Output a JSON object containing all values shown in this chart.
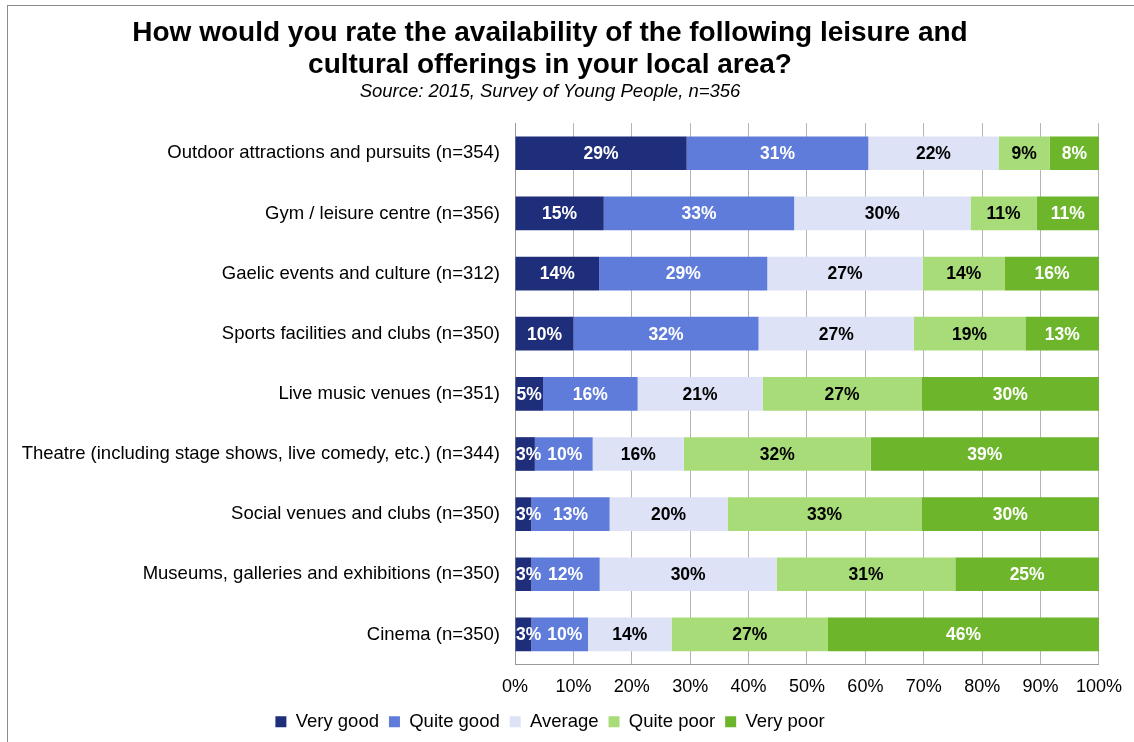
{
  "chart_data": {
    "type": "bar",
    "orientation": "horizontal",
    "stacked": true,
    "title": "How would you rate the availability of the following leisure and\ncultural offerings in your local area?",
    "subtitle": "Source: 2015, Survey of Young People, n=356",
    "categories": [
      "Outdoor attractions and pursuits (n=354)",
      "Gym / leisure centre (n=356)",
      "Gaelic events and culture (n=312)",
      "Sports facilities and clubs (n=350)",
      "Live music venues (n=351)",
      "Theatre (including stage shows, live comedy, etc.) (n=344)",
      "Social venues and clubs (n=350)",
      "Museums, galleries and exhibitions (n=350)",
      "Cinema (n=350)"
    ],
    "series": [
      {
        "name": "Very good",
        "color": "#1f2e7a",
        "values": [
          29.4,
          15.2,
          14.4,
          10.0,
          4.8,
          3.4,
          2.8,
          2.8,
          2.8
        ],
        "value_labels": [
          "29%",
          "15%",
          "14%",
          "10%",
          "5%",
          "3%",
          "3%",
          "3%",
          "3%"
        ]
      },
      {
        "name": "Quite good",
        "color": "#607cda",
        "values": [
          31.1,
          32.6,
          28.8,
          31.7,
          16.2,
          9.9,
          13.4,
          11.7,
          9.7
        ],
        "value_labels": [
          "31%",
          "33%",
          "29%",
          "32%",
          "16%",
          "10%",
          "13%",
          "12%",
          "10%"
        ]
      },
      {
        "name": "Average",
        "color": "#dee2f6",
        "values": [
          22.3,
          30.2,
          26.6,
          26.6,
          21.4,
          15.6,
          20.2,
          30.3,
          14.3
        ],
        "value_labels": [
          "22%",
          "30%",
          "27%",
          "27%",
          "21%",
          "16%",
          "20%",
          "30%",
          "14%"
        ]
      },
      {
        "name": "Quite poor",
        "color": "#a8dc78",
        "values": [
          8.8,
          11.3,
          14.1,
          19.1,
          27.2,
          32.0,
          33.2,
          30.6,
          26.8
        ],
        "value_labels": [
          "9%",
          "11%",
          "14%",
          "19%",
          "27%",
          "32%",
          "33%",
          "31%",
          "27%"
        ]
      },
      {
        "name": "Very poor",
        "color": "#6db52b",
        "values": [
          8.4,
          10.7,
          16.1,
          12.6,
          30.4,
          39.1,
          30.4,
          24.6,
          46.4
        ],
        "value_labels": [
          "8%",
          "11%",
          "16%",
          "13%",
          "30%",
          "39%",
          "30%",
          "25%",
          "46%"
        ]
      }
    ],
    "xlim": [
      0,
      100
    ],
    "xticks": [
      {
        "value": 0,
        "label": "0%"
      },
      {
        "value": 10,
        "label": "10%"
      },
      {
        "value": 20,
        "label": "20%"
      },
      {
        "value": 30,
        "label": "30%"
      },
      {
        "value": 40,
        "label": "40%"
      },
      {
        "value": 50,
        "label": "50%"
      },
      {
        "value": 60,
        "label": "60%"
      },
      {
        "value": 70,
        "label": "70%"
      },
      {
        "value": 80,
        "label": "80%"
      },
      {
        "value": 90,
        "label": "90%"
      },
      {
        "value": 100,
        "label": "100%"
      }
    ],
    "grid": "x",
    "legend": "bottom"
  }
}
